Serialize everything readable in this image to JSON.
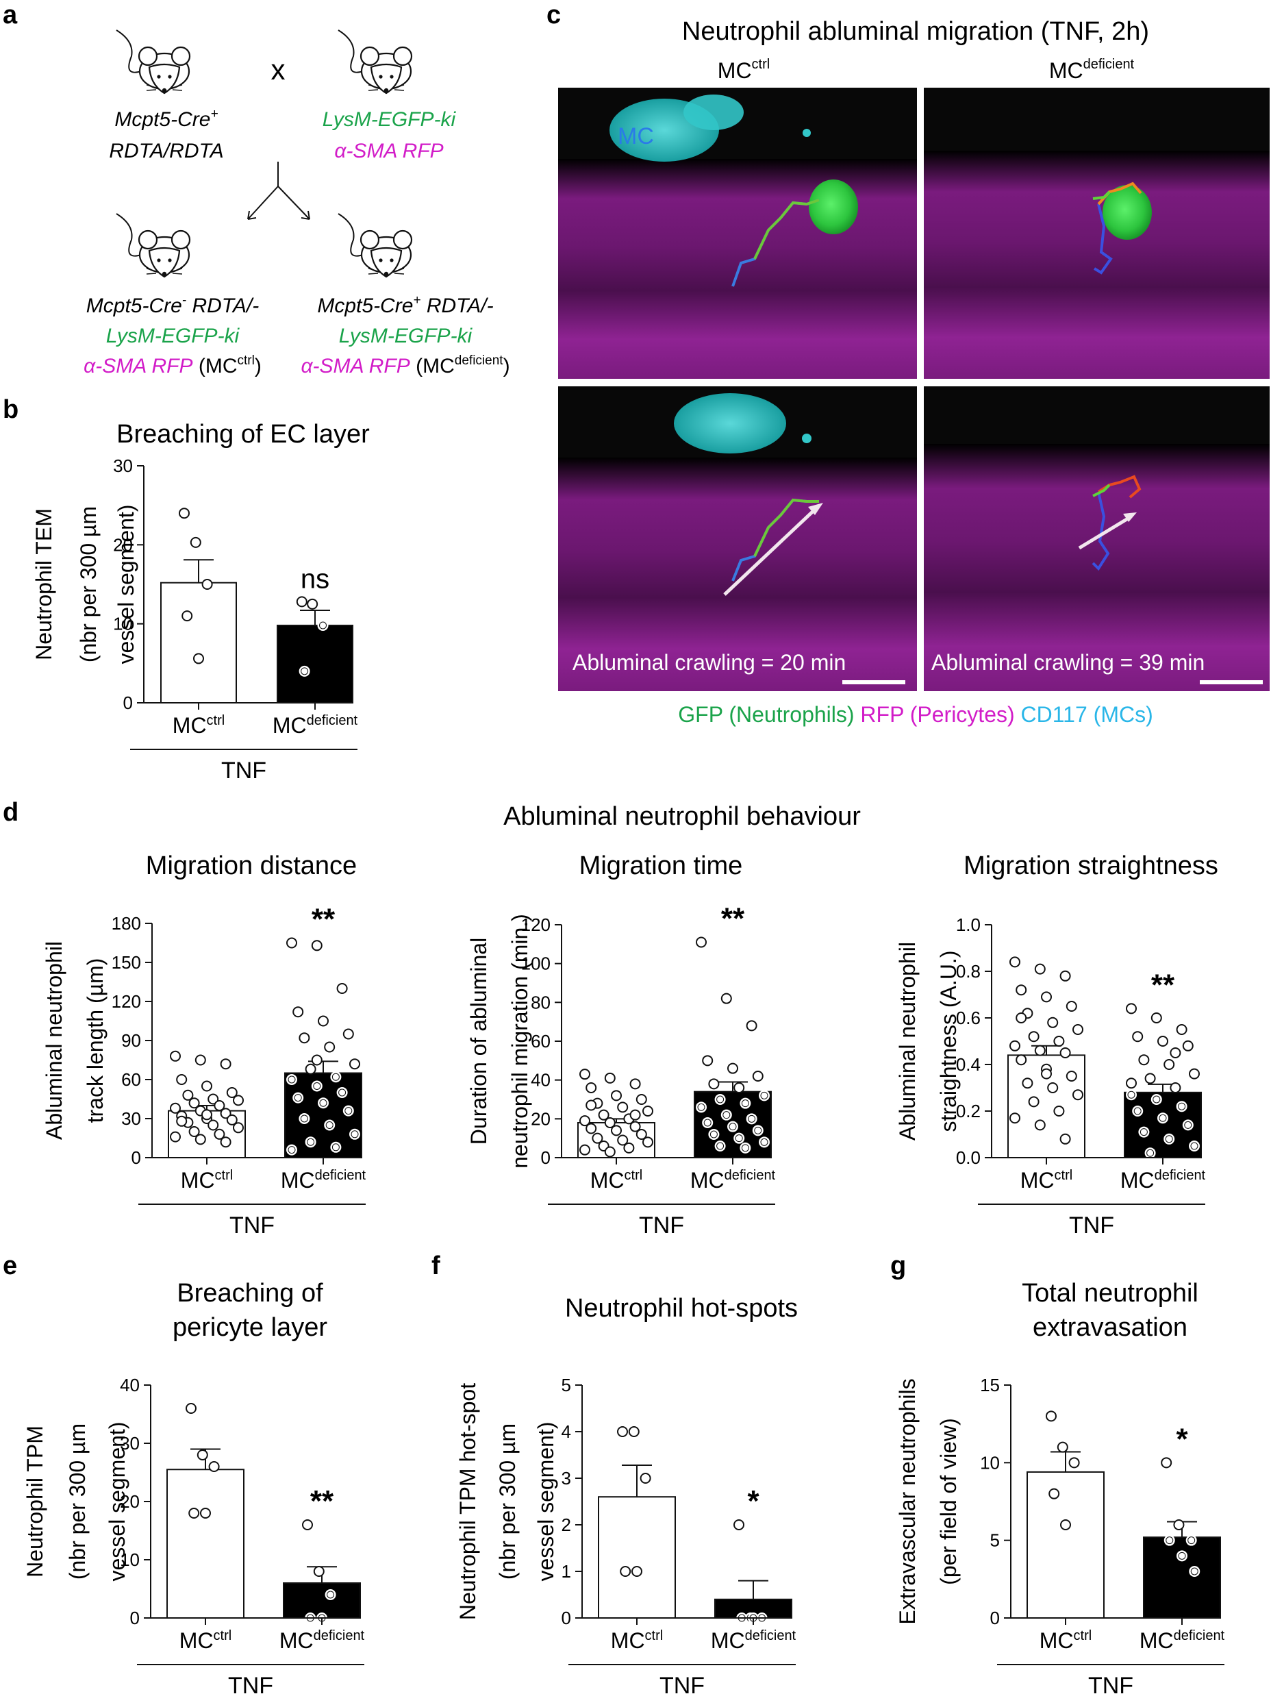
{
  "colors": {
    "black": "#111111",
    "green": "#1aa34a",
    "magenta": "#d21cc8",
    "cyan": "#29b6e8",
    "micro_bg": "#080808",
    "pericyte": "#8e1f91",
    "neutrophil": "#39d64a",
    "mastcell": "#33c7c9"
  },
  "panel_letters": [
    "a",
    "b",
    "c",
    "d",
    "e",
    "f",
    "g"
  ],
  "panel_a": {
    "parent1_line1": "Mcpt5-Cre",
    "parent1_sup": "+",
    "parent1_line2": "RDTA/RDTA",
    "cross": "x",
    "parent2_line1": "LysM-EGFP-ki",
    "parent2_line2": "α-SMA RFP",
    "child1_line1": "Mcpt5-Cre",
    "child1_sup": "-",
    "child1_line1b": " RDTA/-",
    "child1_line2": "LysM-EGFP-ki",
    "child1_line3": "α-SMA RFP",
    "child1_tag": "(MC",
    "child1_tag_sup": "ctrl",
    "child1_tag_end": ")",
    "child2_line1": "Mcpt5-Cre",
    "child2_sup": "+",
    "child2_line1b": " RDTA/-",
    "child2_line2": "LysM-EGFP-ki",
    "child2_line3": "α-SMA RFP",
    "child2_tag": "(MC",
    "child2_tag_sup": "deficient",
    "child2_tag_end": ")",
    "mouse_icon": "mouse-icon"
  },
  "panel_c": {
    "title": "Neutrophil abluminal migration (TNF, 2h)",
    "col1": "MC",
    "col1_sup": "ctrl",
    "col2": "MC",
    "col2_sup": "deficient",
    "mc_label": "MC",
    "caption1": "Abluminal crawling = 20 min",
    "caption2": "Abluminal crawling = 39 min",
    "legend_gfp": "GFP (Neutrophils)",
    "legend_rfp": "RFP (Pericytes)",
    "legend_cd117": "CD117 (MCs)"
  },
  "panel_d_title": "Abluminal neutrophil behaviour",
  "group_labels": {
    "mc": "MC",
    "ctrl": "ctrl",
    "deficient": "deficient",
    "treatment": "TNF"
  },
  "chart_data": [
    {
      "panel": "b",
      "type": "bar",
      "title": "Breaching of EC layer",
      "ylabel": [
        "Neutrophil TEM",
        "(nbr per 300 µm",
        "vessel segment)"
      ],
      "ylim": [
        0,
        30
      ],
      "yticks": [
        0,
        10,
        20,
        30
      ],
      "categories": [
        "MCctrl",
        "MCdeficient"
      ],
      "values": [
        15.2,
        9.8
      ],
      "sem": [
        2.9,
        1.9
      ],
      "points": [
        [
          24,
          20.3,
          15,
          11,
          5.6
        ],
        [
          12.8,
          12.5,
          9.8,
          4
        ]
      ],
      "significance": "ns",
      "xlabel": "TNF"
    },
    {
      "panel": "d",
      "type": "bar",
      "title": "Migration distance",
      "ylabel": [
        "Abluminal neutrophil",
        "track length (µm)"
      ],
      "ylim": [
        0,
        180
      ],
      "yticks": [
        0,
        30,
        60,
        90,
        120,
        150,
        180
      ],
      "categories": [
        "MCctrl",
        "MCdeficient"
      ],
      "values": [
        36,
        65
      ],
      "sem": [
        4,
        9
      ],
      "points": [
        [
          78,
          75,
          72,
          60,
          55,
          50,
          48,
          45,
          44,
          42,
          40,
          38,
          36,
          34,
          32,
          30,
          29,
          27,
          25,
          23,
          20,
          18,
          16,
          14,
          12,
          28,
          33
        ],
        [
          165,
          163,
          130,
          112,
          105,
          95,
          92,
          85,
          72,
          68,
          62,
          60,
          55,
          50,
          46,
          42,
          36,
          30,
          25,
          18,
          12,
          8,
          6,
          75
        ]
      ],
      "significance": "**",
      "xlabel": "TNF"
    },
    {
      "panel": "d",
      "type": "bar",
      "title": "Migration time",
      "ylabel": [
        "Duration of abluminal",
        "neutrophil migration (min.)"
      ],
      "ylim": [
        0,
        120
      ],
      "yticks": [
        0,
        20,
        40,
        60,
        80,
        100,
        120
      ],
      "categories": [
        "MCctrl",
        "MCdeficient"
      ],
      "values": [
        18,
        34
      ],
      "sem": [
        2,
        5
      ],
      "points": [
        [
          43,
          41,
          38,
          36,
          32,
          30,
          28,
          26,
          24,
          22,
          20,
          19,
          18,
          16,
          15,
          14,
          12,
          10,
          9,
          8,
          6,
          5,
          4,
          3,
          22,
          27
        ],
        [
          111,
          82,
          68,
          50,
          46,
          42,
          38,
          36,
          32,
          30,
          28,
          26,
          22,
          20,
          18,
          16,
          14,
          12,
          10,
          8,
          6,
          5
        ]
      ],
      "significance": "**",
      "xlabel": "TNF"
    },
    {
      "panel": "d",
      "type": "bar",
      "title": "Migration straightness",
      "ylabel": [
        "Abluminal neutrophil",
        "straightness (A.U.)"
      ],
      "ylim": [
        0,
        1.0
      ],
      "yticks": [
        0.0,
        0.2,
        0.4,
        0.6,
        0.8,
        1.0
      ],
      "yticklabels": [
        "0.0",
        "0.2",
        "0.4",
        "0.6",
        "0.8",
        "1.0"
      ],
      "categories": [
        "MCctrl",
        "MCdeficient"
      ],
      "values": [
        0.44,
        0.28
      ],
      "sem": [
        0.04,
        0.035
      ],
      "points": [
        [
          0.84,
          0.81,
          0.78,
          0.72,
          0.69,
          0.65,
          0.62,
          0.58,
          0.55,
          0.52,
          0.5,
          0.48,
          0.46,
          0.45,
          0.42,
          0.38,
          0.35,
          0.32,
          0.3,
          0.27,
          0.24,
          0.2,
          0.17,
          0.14,
          0.08,
          0.6,
          0.36
        ],
        [
          0.64,
          0.6,
          0.55,
          0.52,
          0.5,
          0.48,
          0.42,
          0.4,
          0.36,
          0.34,
          0.3,
          0.27,
          0.25,
          0.22,
          0.2,
          0.17,
          0.14,
          0.11,
          0.08,
          0.05,
          0.02,
          0.45,
          0.32
        ]
      ],
      "significance": "**",
      "xlabel": "TNF"
    },
    {
      "panel": "e",
      "type": "bar",
      "title": [
        "Breaching of",
        "pericyte layer"
      ],
      "ylabel": [
        "Neutrophil TPM",
        "(nbr per 300 µm",
        "vessel segment)"
      ],
      "ylim": [
        0,
        40
      ],
      "yticks": [
        0,
        10,
        20,
        30,
        40
      ],
      "categories": [
        "MCctrl",
        "MCdeficient"
      ],
      "values": [
        25.5,
        6
      ],
      "sem": [
        3.5,
        2.8
      ],
      "points": [
        [
          36,
          28,
          26,
          18,
          18
        ],
        [
          16,
          8,
          4,
          0,
          0
        ]
      ],
      "significance": "**",
      "xlabel": "TNF"
    },
    {
      "panel": "f",
      "type": "bar",
      "title": "Neutrophil hot-spots",
      "ylabel": [
        "Neutrophil TPM hot-spot",
        "(nbr per 300 µm",
        "vessel segment)"
      ],
      "ylim": [
        0,
        5
      ],
      "yticks": [
        0,
        1,
        2,
        3,
        4,
        5
      ],
      "categories": [
        "MCctrl",
        "MCdeficient"
      ],
      "values": [
        2.6,
        0.4
      ],
      "sem": [
        0.68,
        0.4
      ],
      "points": [
        [
          4,
          4,
          3,
          1,
          1
        ],
        [
          2,
          0,
          0,
          0,
          0
        ]
      ],
      "significance": "*",
      "xlabel": "TNF"
    },
    {
      "panel": "g",
      "type": "bar",
      "title": [
        "Total neutrophil",
        "extravasation"
      ],
      "ylabel": [
        "Extravascular neutrophils",
        "(per field of view)"
      ],
      "ylim": [
        0,
        15
      ],
      "yticks": [
        0,
        5,
        10,
        15
      ],
      "categories": [
        "MCctrl",
        "MCdeficient"
      ],
      "values": [
        9.4,
        5.2
      ],
      "sem": [
        1.3,
        1.0
      ],
      "points": [
        [
          13,
          11,
          10,
          8,
          6
        ],
        [
          10,
          6,
          5,
          5,
          4,
          3
        ]
      ],
      "significance": "*",
      "xlabel": "TNF"
    }
  ]
}
